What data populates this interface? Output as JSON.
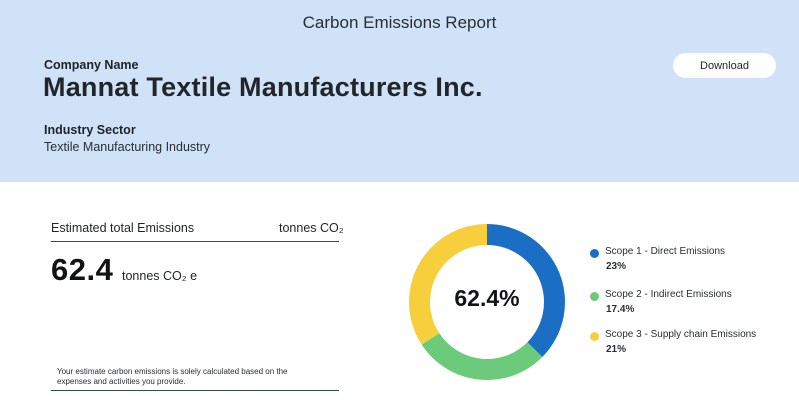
{
  "header": {
    "report_title": "Carbon Emissions Report",
    "company_label": "Company Name",
    "company_name": "Mannat Textile Manufacturers Inc.",
    "industry_label": "Industry Sector",
    "industry_value": "Textile Manufacturing Industry",
    "download_label": "Download"
  },
  "emissions": {
    "label": "Estimated total Emissions",
    "unit": "tonnes CO₂",
    "value": "62.4",
    "value_unit": "tonnes CO₂ e",
    "note": "Your estimate carbon emissions is solely calculated based on the expenses and activities you provide."
  },
  "colors": {
    "header_bg": "#cfe2f7",
    "scope1": "#1a6fc4",
    "scope2": "#6ccb7a",
    "scope3": "#f7ce3c"
  },
  "chart_data": {
    "type": "pie",
    "center_label": "62.4%",
    "categories": [
      "Scope 1 - Direct Emissions",
      "Scope 2 - Indirect Emissions",
      "Scope 3 - Supply chain Emissions"
    ],
    "values": [
      23,
      17.4,
      21
    ],
    "value_labels": [
      "23%",
      "17.4%",
      "21%"
    ],
    "colors": [
      "#1a6fc4",
      "#6ccb7a",
      "#f7ce3c"
    ],
    "legend_position": "right"
  }
}
